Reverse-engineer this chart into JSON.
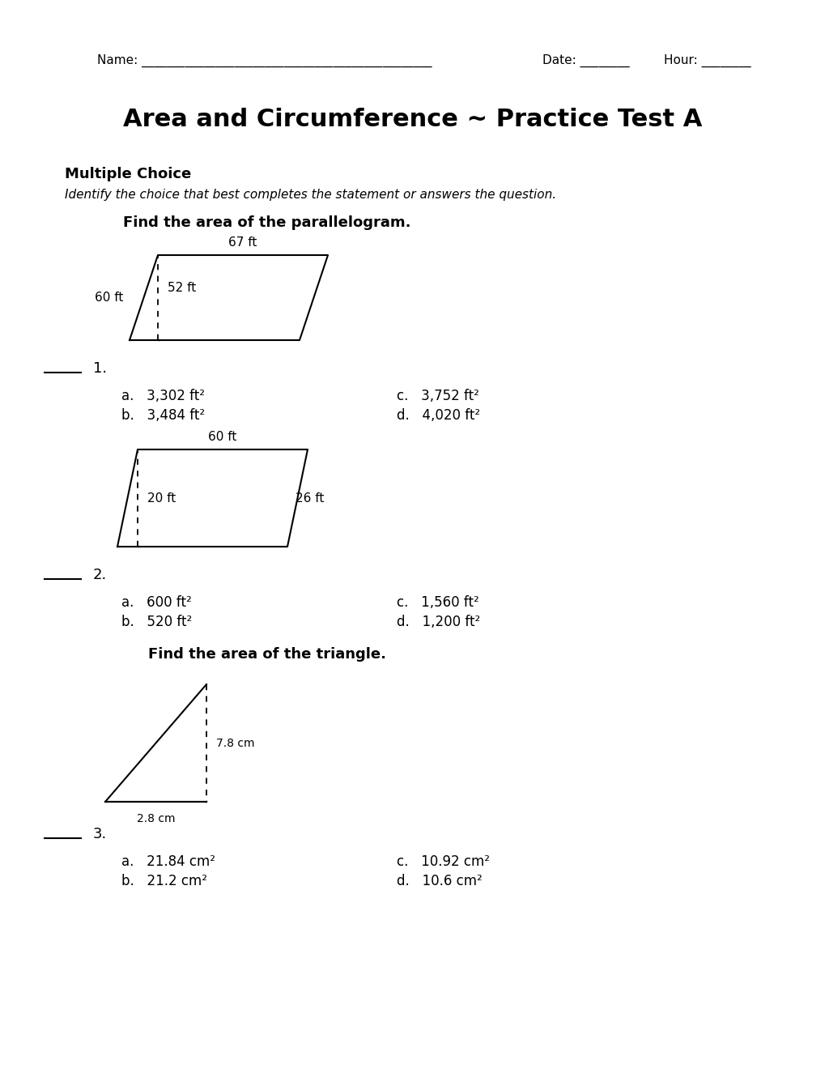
{
  "title": "Area and Circumference ~ Practice Test A",
  "bg_color": "#ffffff",
  "section_header": "Multiple Choice",
  "section_subheader": "Identify the choice that best completes the statement or answers the question.",
  "q1_instruction": "Find the area of the parallelogram.",
  "q1_answers": {
    "a": "3,302 ft²",
    "b": "3,484 ft²",
    "c": "3,752 ft²",
    "d": "4,020 ft²"
  },
  "q2_answers": {
    "a": "600 ft²",
    "b": "520 ft²",
    "c": "1,560 ft²",
    "d": "1,200 ft²"
  },
  "q3_instruction": "Find the area of the triangle.",
  "q3_answers": {
    "a": "21.84 cm²",
    "b": "21.2 cm²",
    "c": "10.92 cm²",
    "d": "10.6 cm²"
  },
  "lw": 1.5,
  "sq_s": 0.007
}
